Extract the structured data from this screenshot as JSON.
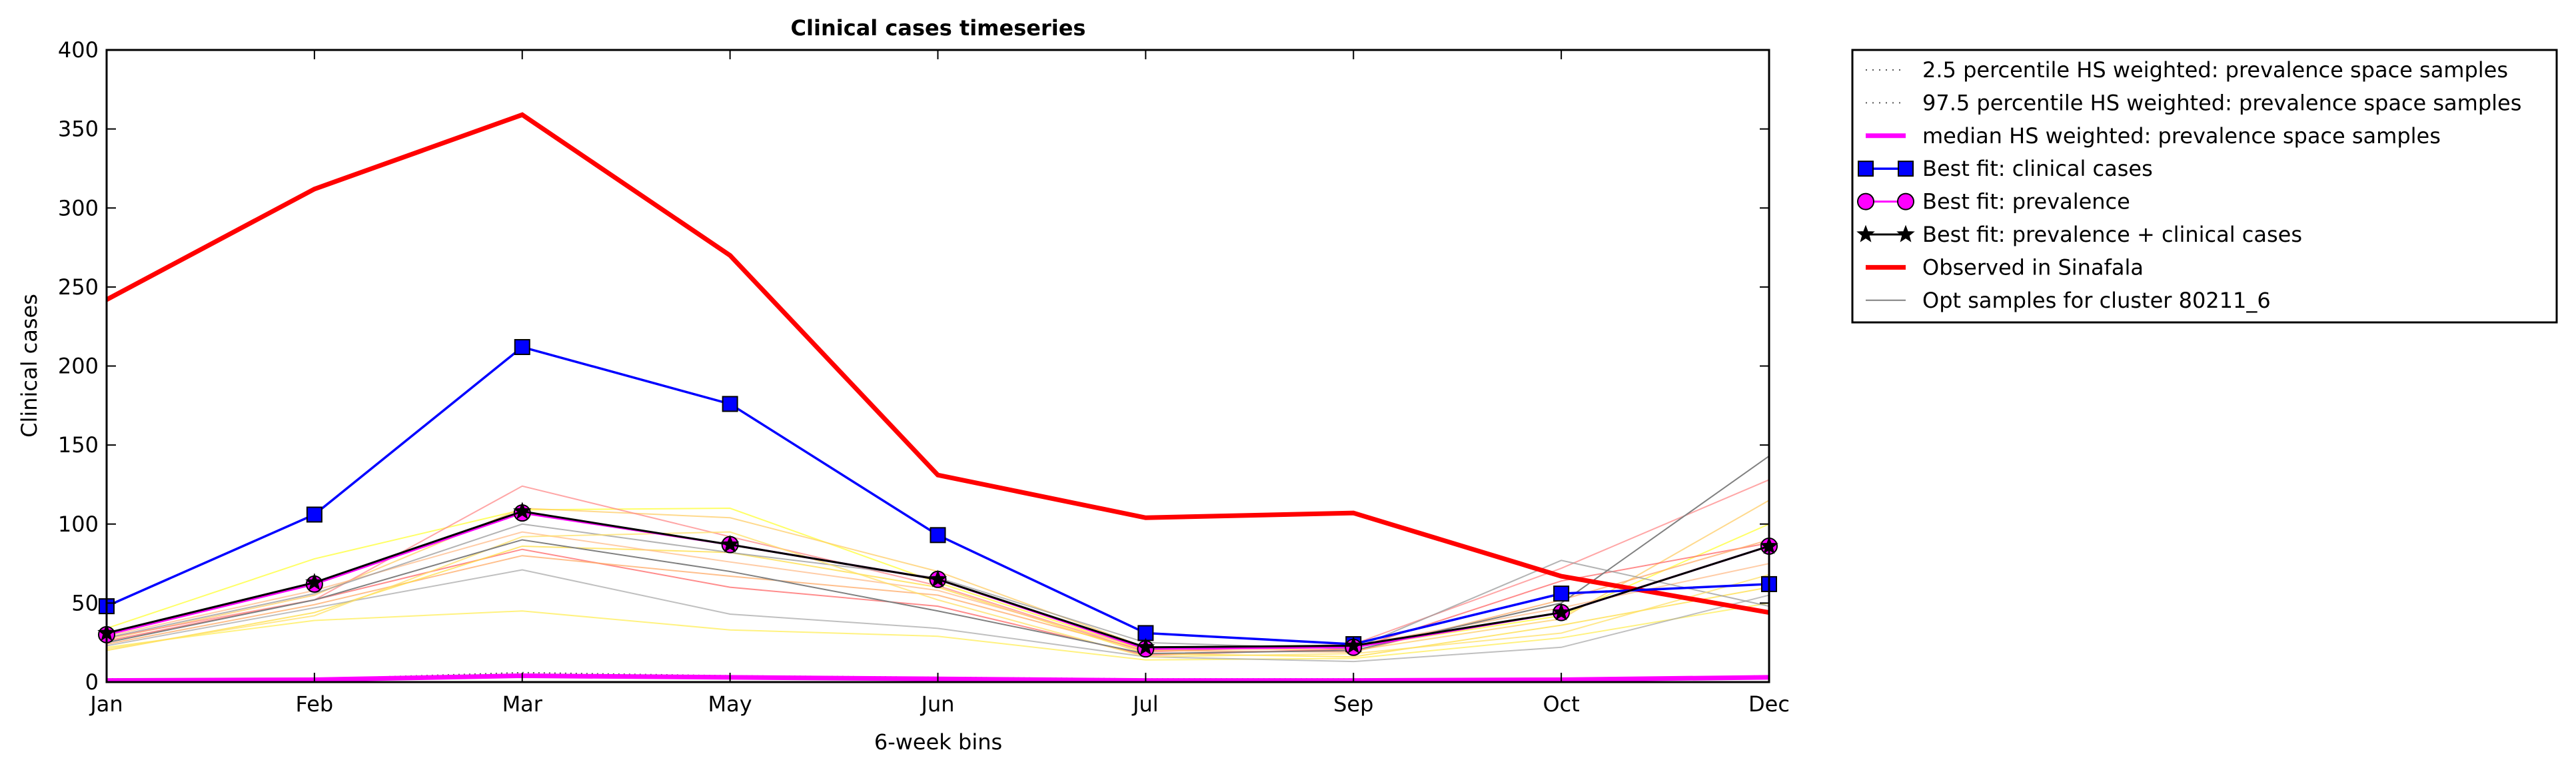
{
  "chart_data": {
    "type": "line",
    "title": "Clinical cases timeseries",
    "xlabel": "6-week bins",
    "ylabel": "Clinical cases",
    "categories": [
      "Jan",
      "Feb",
      "Mar",
      "May",
      "Jun",
      "Jul",
      "Sep",
      "Oct",
      "Dec"
    ],
    "ylim": [
      0,
      400
    ],
    "yticks": [
      0,
      50,
      100,
      150,
      200,
      250,
      300,
      350,
      400
    ],
    "grid": false,
    "legend_position": "outside-right",
    "series": [
      {
        "name": "2.5 percentile HS weighted: prevalence space samples",
        "style": "dotted",
        "color": "#555555",
        "values": [
          1,
          1,
          5,
          3,
          2,
          1,
          1,
          1,
          3
        ]
      },
      {
        "name": "97.5 percentile HS weighted: prevalence space samples",
        "style": "dotted",
        "color": "#555555",
        "values": [
          2,
          2,
          6,
          4,
          3,
          2,
          2,
          2,
          4
        ]
      },
      {
        "name": "median HS weighted: prevalence space samples",
        "style": "solid",
        "color": "#ff00ff",
        "values": [
          1,
          1.5,
          4,
          3,
          2,
          1,
          1,
          1.5,
          3
        ]
      },
      {
        "name": "Best fit: clinical cases",
        "style": "solid",
        "color": "#0000ff",
        "marker": "square",
        "values": [
          48,
          106,
          212,
          176,
          93,
          31,
          24,
          56,
          62
        ]
      },
      {
        "name": "Best fit: prevalence",
        "style": "solid",
        "color": "#ff00ff",
        "marker": "circle",
        "values": [
          30,
          62,
          107,
          87,
          65,
          21,
          22,
          44,
          86
        ]
      },
      {
        "name": "Best fit: prevalence + clinical cases",
        "style": "solid",
        "color": "#000000",
        "marker": "star",
        "values": [
          31,
          63,
          108,
          87,
          65,
          22,
          23,
          44,
          86
        ]
      },
      {
        "name": "Observed in Sinafala",
        "style": "solid",
        "color": "#ff0000",
        "values": [
          242,
          312,
          359,
          270,
          131,
          104,
          107,
          67,
          44
        ]
      },
      {
        "name": "Opt samples for cluster 80211_6",
        "style": "solid",
        "color": "#808080",
        "values": [
          25,
          52,
          90,
          70,
          45,
          18,
          20,
          50,
          143
        ]
      }
    ],
    "sample_lines": [
      {
        "color": "#ffff33",
        "values": [
          34,
          78,
          109,
          110,
          63,
          20,
          22,
          42,
          100
        ]
      },
      {
        "color": "#ffee55",
        "values": [
          22,
          39,
          45,
          33,
          29,
          14,
          15,
          28,
          50
        ]
      },
      {
        "color": "#ffcc66",
        "values": [
          27,
          55,
          110,
          104,
          70,
          22,
          20,
          40,
          115
        ]
      },
      {
        "color": "#ff8888",
        "values": [
          28,
          52,
          124,
          92,
          61,
          19,
          24,
          72,
          128
        ]
      },
      {
        "color": "#ff6666",
        "values": [
          26,
          52,
          84,
          60,
          48,
          17,
          21,
          64,
          88
        ]
      },
      {
        "color": "#ffaa66",
        "values": [
          24,
          49,
          80,
          67,
          55,
          20,
          19,
          52,
          90
        ]
      },
      {
        "color": "#ffdd44",
        "values": [
          20,
          44,
          86,
          82,
          60,
          18,
          16,
          36,
          60
        ]
      },
      {
        "color": "#ffbb88",
        "values": [
          29,
          58,
          95,
          76,
          58,
          21,
          23,
          47,
          75
        ]
      },
      {
        "color": "#aaaaaa",
        "values": [
          23,
          47,
          71,
          43,
          34,
          16,
          13,
          22,
          55
        ]
      },
      {
        "color": "#999999",
        "values": [
          28,
          56,
          100,
          82,
          66,
          25,
          21,
          77,
          48
        ]
      },
      {
        "color": "#ffe066",
        "values": [
          21,
          42,
          92,
          95,
          52,
          16,
          18,
          31,
          68
        ]
      }
    ]
  }
}
